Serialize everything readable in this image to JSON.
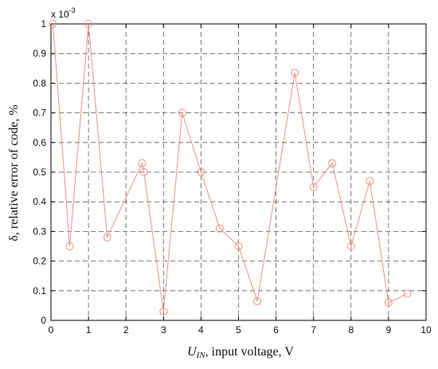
{
  "chart_data": {
    "type": "line",
    "xlabel_sym": "U",
    "xlabel_sub": "IN",
    "xlabel_rest": ", input voltage, V",
    "ylabel": "δ, relative error of code, %",
    "y_multiplier_base": "x 10",
    "y_multiplier_exp": "-3",
    "xlim": [
      0,
      10
    ],
    "ylim": [
      0,
      1
    ],
    "xticks": [
      "0",
      "1",
      "2",
      "3",
      "4",
      "5",
      "6",
      "7",
      "8",
      "9",
      "10"
    ],
    "yticks": [
      "0",
      "0.1",
      "0.2",
      "0.3",
      "0.4",
      "0.5",
      "0.6",
      "0.7",
      "0.8",
      "0.9",
      "1"
    ],
    "grid": true,
    "line_color": "#e8948c",
    "marker": "circle",
    "series": [
      {
        "x": [
          0.05,
          0.5,
          1.0,
          1.5,
          2.43,
          2.48,
          3.0,
          3.5,
          4.0,
          4.5,
          5.0,
          5.5,
          6.5,
          7.0,
          7.5,
          8.0,
          8.5,
          9.0,
          9.5
        ],
        "y": [
          1.0,
          0.25,
          1.0,
          0.28,
          0.53,
          0.5,
          0.03,
          0.7,
          0.5,
          0.31,
          0.25,
          0.065,
          0.835,
          0.45,
          0.53,
          0.25,
          0.47,
          0.06,
          0.09
        ]
      }
    ]
  }
}
